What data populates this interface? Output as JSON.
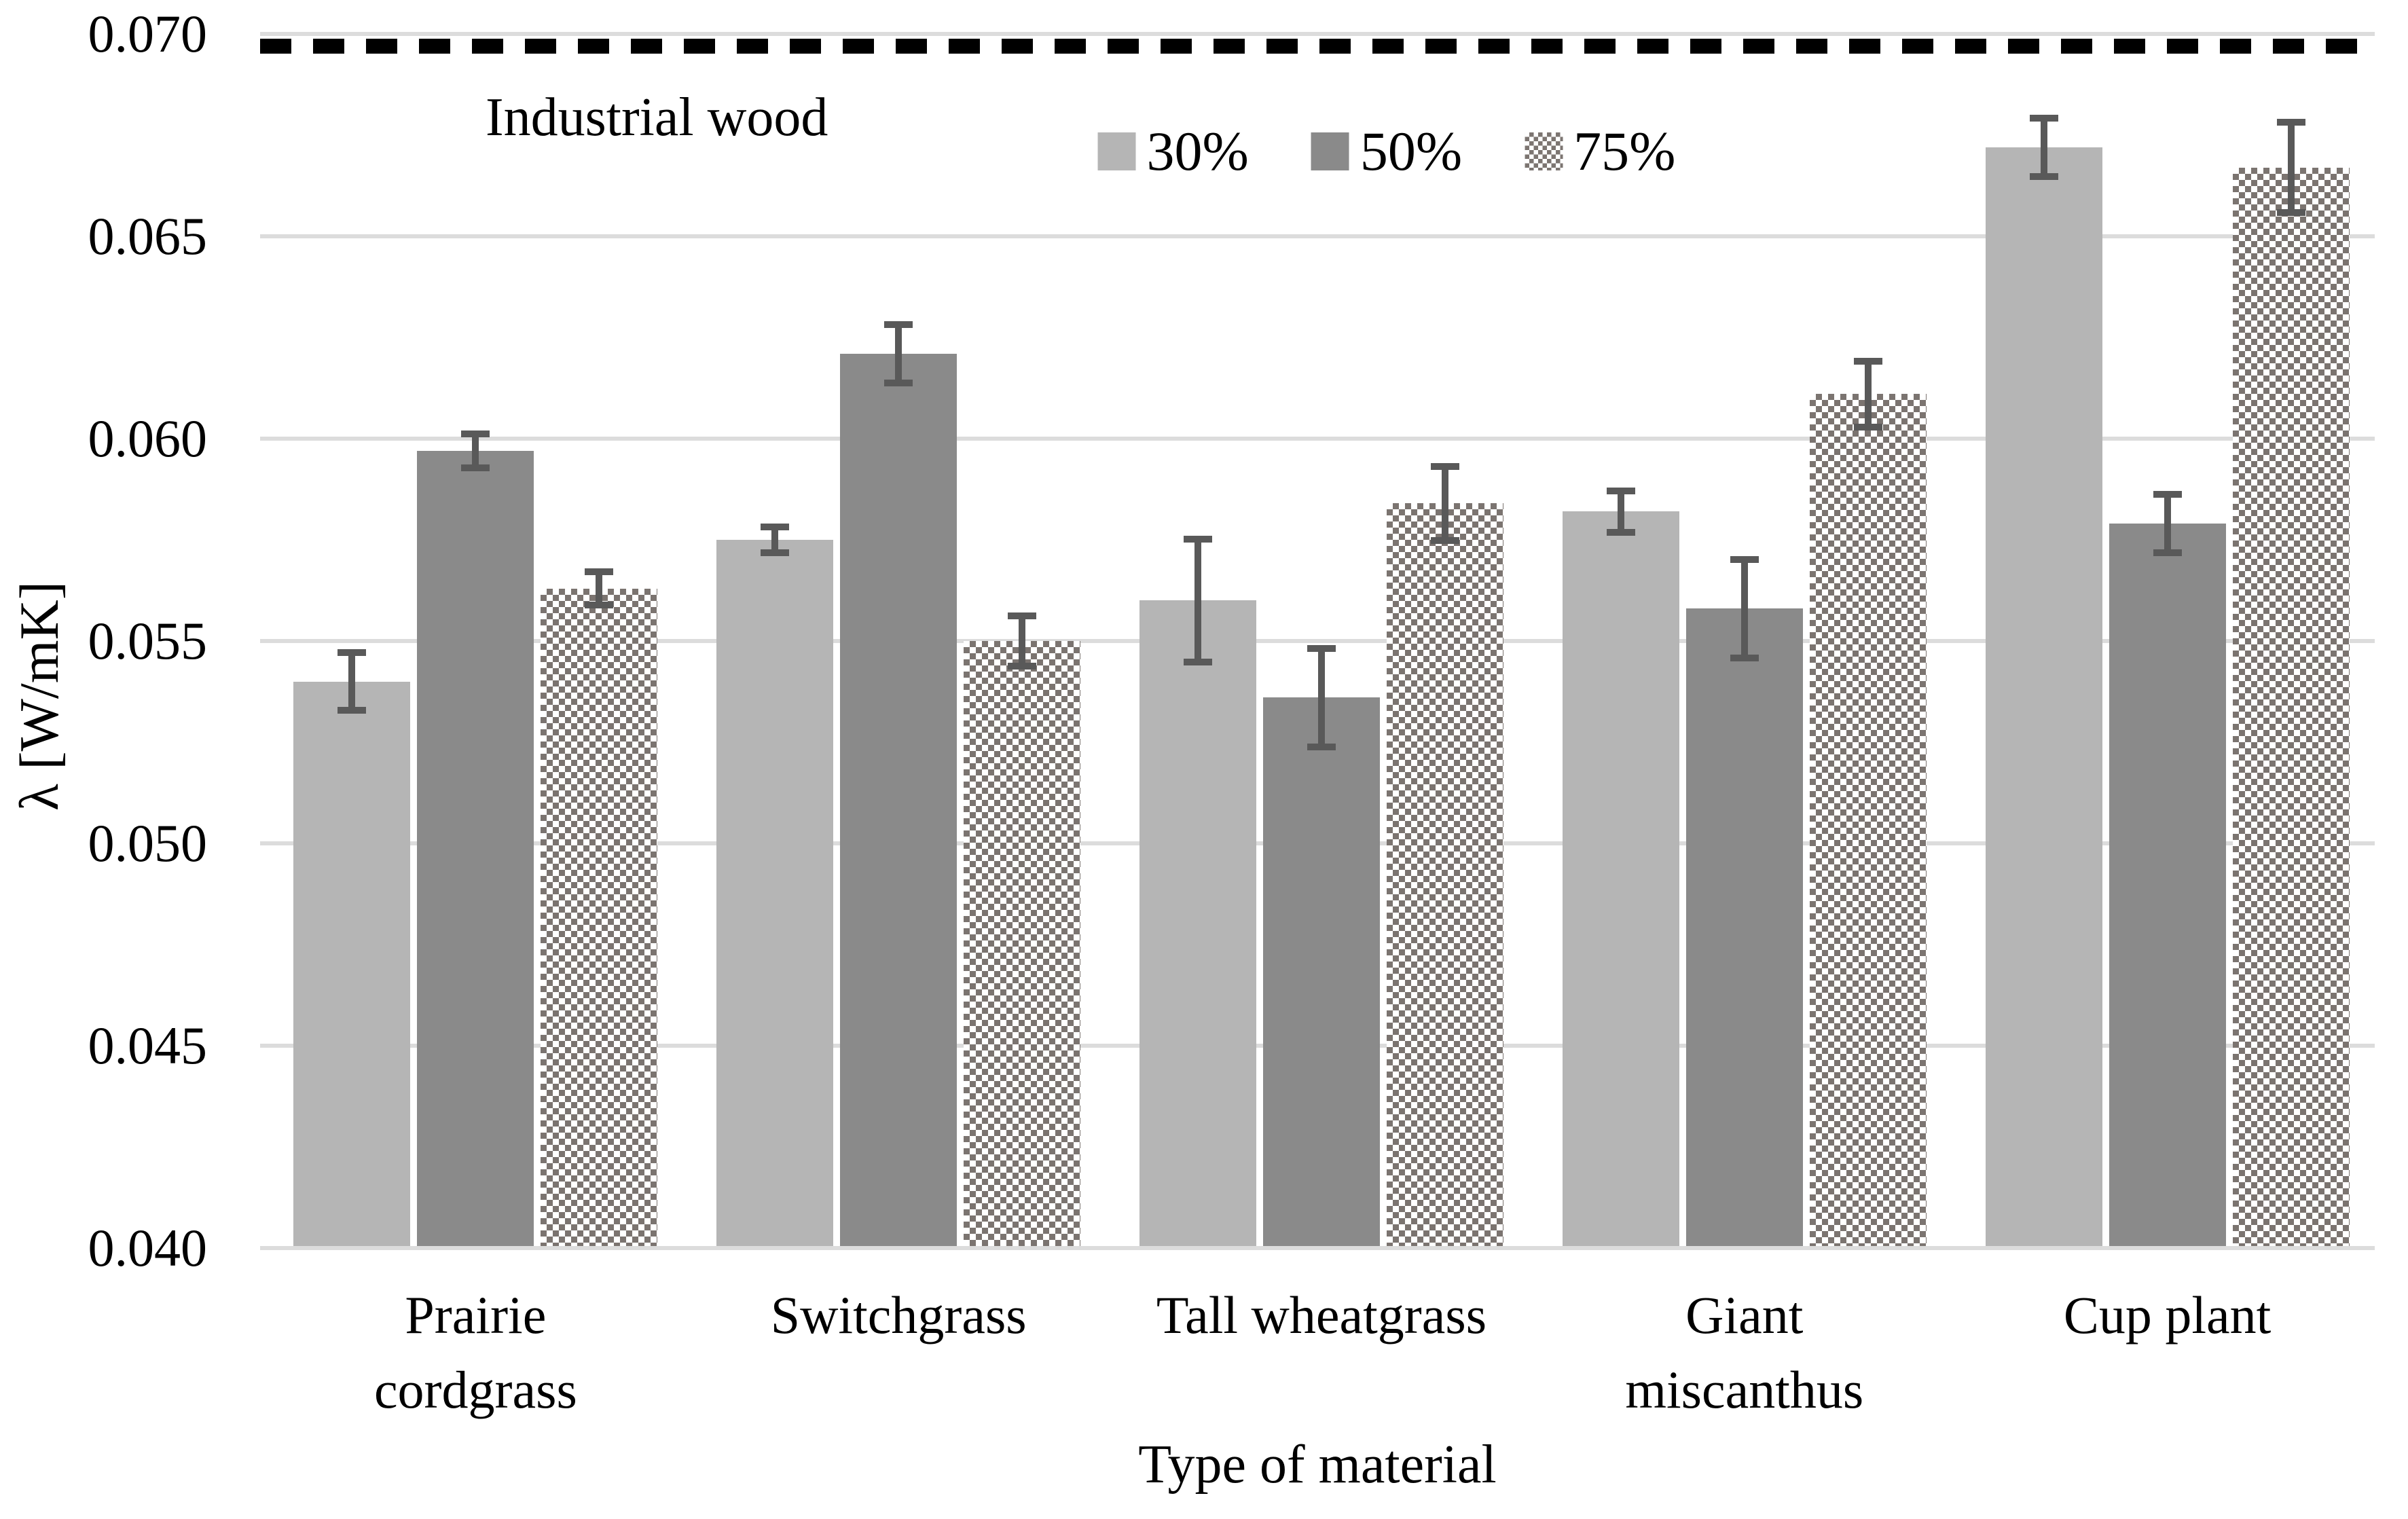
{
  "chart_data": {
    "type": "bar",
    "title": "",
    "xlabel": "Type of material",
    "ylabel": "λ [W/mK]",
    "ylim": [
      0.04,
      0.07
    ],
    "ytick_step": 0.005,
    "yticks": [
      "0.070",
      "0.065",
      "0.060",
      "0.055",
      "0.050",
      "0.045",
      "0.040"
    ],
    "grid": true,
    "legend_position": "top-center",
    "categories": [
      {
        "name": "Prairie cordgrass",
        "lines": [
          "Prairie",
          "cordgrass"
        ]
      },
      {
        "name": "Switchgrass",
        "lines": [
          "Switchgrass"
        ]
      },
      {
        "name": "Tall wheatgrass",
        "lines": [
          "Tall wheatgrass"
        ]
      },
      {
        "name": "Giant miscanthus",
        "lines": [
          "Giant",
          "miscanthus"
        ]
      },
      {
        "name": "Cup plant",
        "lines": [
          "Cup plant"
        ]
      }
    ],
    "series": [
      {
        "name": "30%",
        "fill": "solid",
        "color": "#b5b5b5",
        "values": [
          0.054,
          0.0575,
          0.056,
          0.0582,
          0.0672
        ],
        "errors": [
          0.0008,
          0.0004,
          0.0016,
          0.0006,
          0.0008
        ]
      },
      {
        "name": "50%",
        "fill": "solid",
        "color": "#8a8a8a",
        "values": [
          0.0597,
          0.0621,
          0.0536,
          0.0558,
          0.0579
        ],
        "errors": [
          0.0005,
          0.0008,
          0.0013,
          0.0013,
          0.0008
        ]
      },
      {
        "name": "75%",
        "fill": "pattern-diamond",
        "color": "#7b7470",
        "values": [
          0.0563,
          0.055,
          0.0584,
          0.0611,
          0.0667
        ],
        "errors": [
          0.0005,
          0.0007,
          0.001,
          0.0009,
          0.0012
        ]
      }
    ],
    "reference_line": {
      "label": "Industrial wood",
      "value": 0.0697,
      "style": "dashed",
      "color": "#000000"
    },
    "error_bar_color": "#595959",
    "gridline_color": "#dcdcdc"
  }
}
